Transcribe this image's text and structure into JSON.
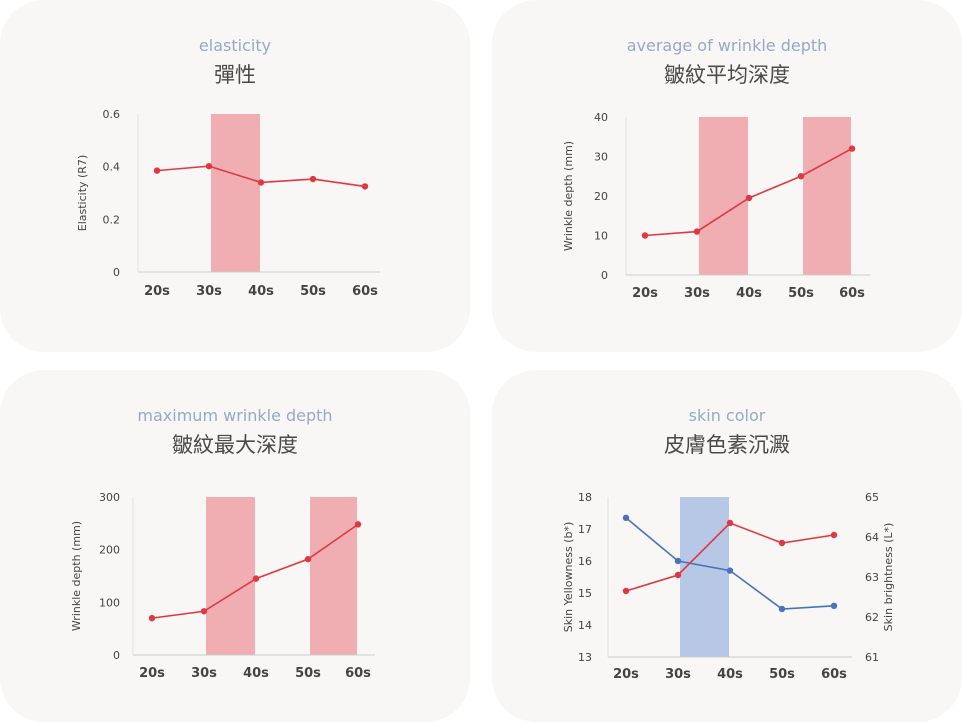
{
  "colors": {
    "card_bg": "#f8f7f5",
    "subtitle": "#96a9c6",
    "title": "#4a4a4a",
    "line_red": "#e03842",
    "line_blue": "#4a72b8",
    "band_red": "#f0aeb2",
    "band_blue": "#b7c7e6",
    "axis": "#cccccc"
  },
  "chart_data": [
    {
      "type": "line",
      "subtitle": "elasticity",
      "title": "彈性",
      "categories": [
        "20s",
        "30s",
        "40s",
        "50s",
        "60s"
      ],
      "series": [
        {
          "values": [
            0.385,
            0.402,
            0.34,
            0.353,
            0.325
          ]
        }
      ],
      "ylabel": "Elasticity (R7)",
      "ylim": [
        0,
        0.6
      ],
      "yticks": [
        "0",
        "0.2",
        "0.4",
        "0.6"
      ],
      "highlight_bands": [
        [
          "30s",
          "40s"
        ]
      ],
      "band_color": "red"
    },
    {
      "type": "line",
      "subtitle": "average of wrinkle depth",
      "title": "皺紋平均深度",
      "categories": [
        "20s",
        "30s",
        "40s",
        "50s",
        "60s"
      ],
      "series": [
        {
          "values": [
            10,
            11,
            19.5,
            25,
            32
          ]
        }
      ],
      "ylabel": "Wrinkle depth (mm)",
      "ylim": [
        0,
        40
      ],
      "yticks": [
        "0",
        "10",
        "20",
        "30",
        "40"
      ],
      "highlight_bands": [
        [
          "30s",
          "40s"
        ],
        [
          "50s",
          "60s"
        ]
      ],
      "band_color": "red"
    },
    {
      "type": "line",
      "subtitle": "maximum wrinkle depth",
      "title": "皺紋最大深度",
      "categories": [
        "20s",
        "30s",
        "40s",
        "50s",
        "60s"
      ],
      "series": [
        {
          "values": [
            70,
            83,
            145,
            182,
            248
          ]
        }
      ],
      "ylabel": "Wrinkle depth (mm)",
      "ylim": [
        0,
        300
      ],
      "yticks": [
        "0",
        "100",
        "200",
        "300"
      ],
      "highlight_bands": [
        [
          "30s",
          "40s"
        ],
        [
          "50s",
          "60s"
        ]
      ],
      "band_color": "red"
    },
    {
      "type": "line",
      "subtitle": "skin color",
      "title": "皮膚色素沉澱",
      "categories": [
        "20s",
        "30s",
        "40s",
        "50s",
        "60s"
      ],
      "series": [
        {
          "axis": "left",
          "color": "blue",
          "values": [
            17.35,
            16.0,
            15.7,
            14.5,
            14.6
          ]
        },
        {
          "axis": "right",
          "color": "red",
          "values": [
            62.65,
            63.05,
            64.35,
            63.85,
            64.05
          ]
        }
      ],
      "ylabel": "Skin Yellowness (b*)",
      "ylim": [
        13,
        18
      ],
      "yticks": [
        "13",
        "14",
        "15",
        "16",
        "17",
        "18"
      ],
      "y2label": "Skin brightness (L*)",
      "y2lim": [
        61,
        65
      ],
      "y2ticks": [
        "61",
        "62",
        "63",
        "64",
        "65"
      ],
      "highlight_bands": [
        [
          "30s",
          "40s"
        ]
      ],
      "band_color": "blue"
    }
  ]
}
